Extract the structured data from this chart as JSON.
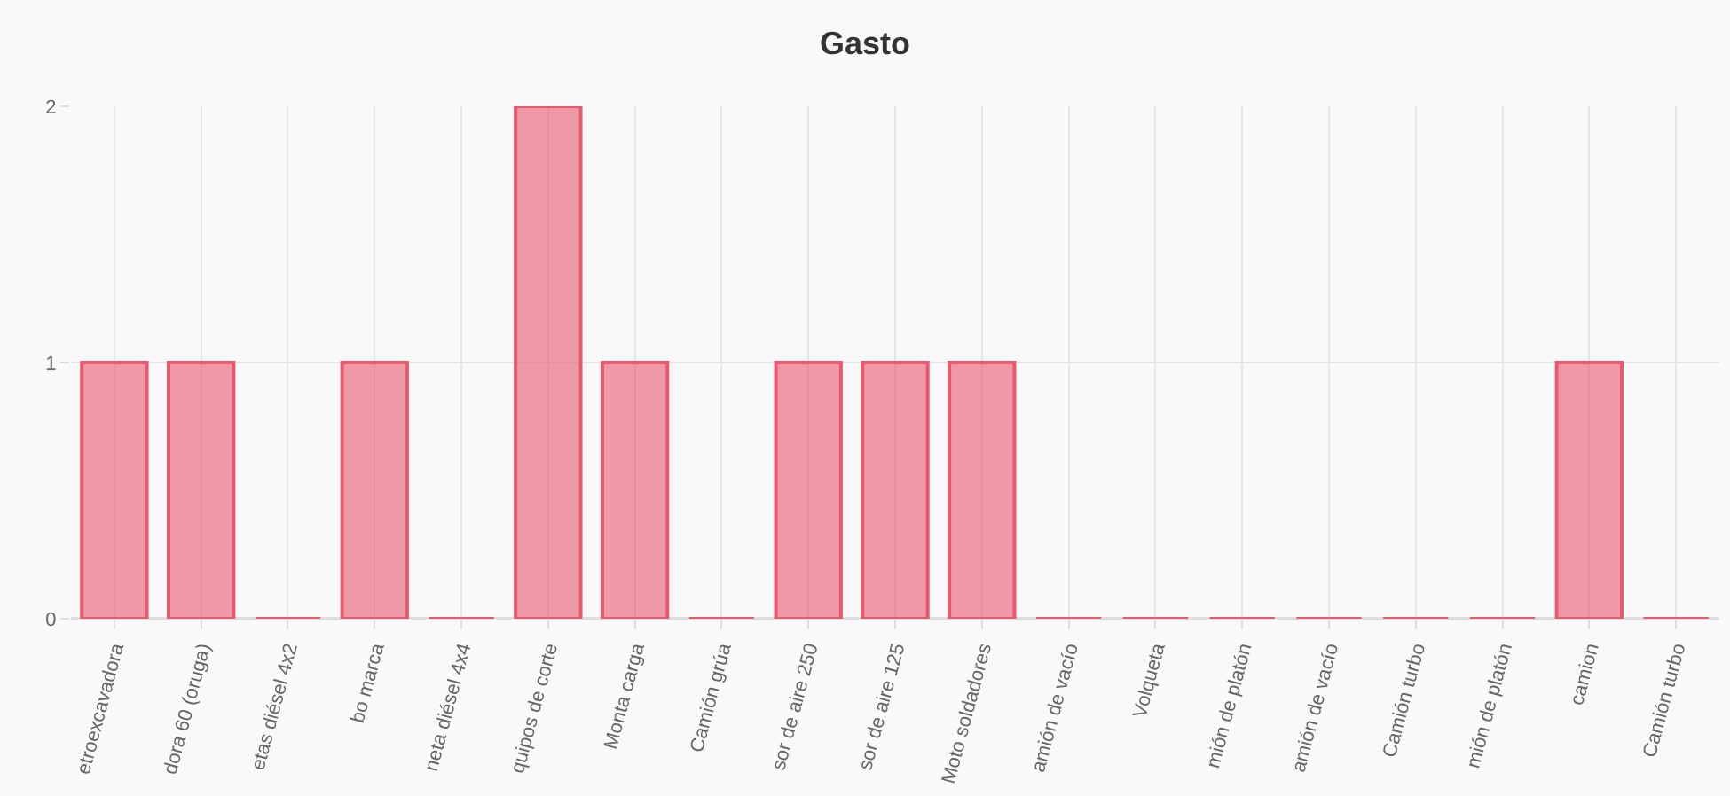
{
  "chart_data": {
    "type": "bar",
    "title": "Gasto",
    "categories": [
      "etroexcavadora",
      "dora 60 (oruga)",
      "etas diésel 4x2",
      "bo marca",
      "neta diésel 4x4",
      "quipos de corte",
      "Monta carga",
      "Camión grúa",
      "sor de aire 250",
      "sor de aire 125",
      "Moto soldadores",
      "amión de vacío",
      "Volqueta",
      "mión de platón",
      "amión de vacío",
      "Camión turbo",
      "mión de platón",
      "camion",
      "Camión turbo"
    ],
    "values": [
      1,
      1,
      0,
      1,
      0,
      2,
      1,
      0,
      1,
      1,
      1,
      0,
      0,
      0,
      0,
      0,
      0,
      1,
      0
    ],
    "color": "#e8596f",
    "ylim": [
      0,
      2
    ],
    "yticks": [
      0,
      1,
      2
    ],
    "grid": true
  }
}
